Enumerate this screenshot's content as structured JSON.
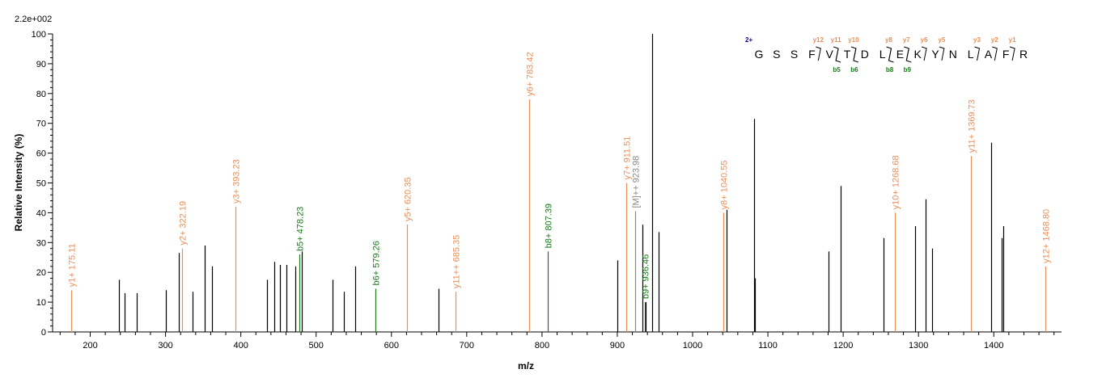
{
  "chart_data": {
    "type": "bar",
    "scale_label": "2.2e+002",
    "xlabel": "m/z",
    "ylabel": "Relative   Intensity (%)",
    "xlim": [
      150,
      1490
    ],
    "ylim": [
      0,
      100
    ],
    "x_ticks": [
      200,
      300,
      400,
      500,
      600,
      700,
      800,
      900,
      1000,
      1100,
      1200,
      1300,
      1400
    ],
    "y_ticks": [
      0,
      10,
      20,
      30,
      40,
      50,
      60,
      70,
      80,
      90,
      100
    ],
    "colors": {
      "y_ion": "#e8905a",
      "b_ion": "#1a7a1a",
      "precursor": "#888888",
      "other": "#000000",
      "charge": "#00008b"
    },
    "peaks": [
      {
        "mz": 175.11,
        "intensity": 14,
        "ion": "y",
        "label": "y1+ 175.11"
      },
      {
        "mz": 238,
        "intensity": 17.5,
        "ion": "other"
      },
      {
        "mz": 246,
        "intensity": 13,
        "ion": "other"
      },
      {
        "mz": 262,
        "intensity": 13,
        "ion": "other"
      },
      {
        "mz": 300,
        "intensity": 14,
        "ion": "other"
      },
      {
        "mz": 318,
        "intensity": 26.5,
        "ion": "other"
      },
      {
        "mz": 322.19,
        "intensity": 28,
        "ion": "y",
        "label": "y2+ 322.19"
      },
      {
        "mz": 336,
        "intensity": 13.5,
        "ion": "other"
      },
      {
        "mz": 352,
        "intensity": 29,
        "ion": "other"
      },
      {
        "mz": 362,
        "intensity": 22,
        "ion": "other"
      },
      {
        "mz": 393.23,
        "intensity": 42,
        "ion": "y",
        "label": "y3+ 393.23"
      },
      {
        "mz": 435,
        "intensity": 17.5,
        "ion": "other"
      },
      {
        "mz": 444,
        "intensity": 23.5,
        "ion": "other"
      },
      {
        "mz": 452,
        "intensity": 22.5,
        "ion": "other"
      },
      {
        "mz": 461,
        "intensity": 22.5,
        "ion": "other"
      },
      {
        "mz": 472,
        "intensity": 22,
        "ion": "other"
      },
      {
        "mz": 478.23,
        "intensity": 26,
        "ion": "b",
        "label": "b5+ 478.23"
      },
      {
        "mz": 481,
        "intensity": 27,
        "ion": "other"
      },
      {
        "mz": 522,
        "intensity": 17.5,
        "ion": "other"
      },
      {
        "mz": 537,
        "intensity": 13.5,
        "ion": "other"
      },
      {
        "mz": 552,
        "intensity": 22,
        "ion": "other"
      },
      {
        "mz": 579.26,
        "intensity": 14.5,
        "ion": "b",
        "label": "b6+ 579.26"
      },
      {
        "mz": 620.35,
        "intensity": 36,
        "ion": "y",
        "label": "y5+ 620.35"
      },
      {
        "mz": 663,
        "intensity": 14.5,
        "ion": "other"
      },
      {
        "mz": 685.35,
        "intensity": 13.5,
        "ion": "y",
        "label": "y11++ 685.35"
      },
      {
        "mz": 783.42,
        "intensity": 78,
        "ion": "y",
        "label": "y6+ 783.42"
      },
      {
        "mz": 807.39,
        "intensity": 27,
        "ion": "b",
        "label": "b8+ 807.39"
      },
      {
        "mz": 900,
        "intensity": 24,
        "ion": "other"
      },
      {
        "mz": 911.51,
        "intensity": 50,
        "ion": "y",
        "label": "y7+ 911.51"
      },
      {
        "mz": 923.98,
        "intensity": 40.5,
        "ion": "precursor",
        "label": "[M]++ 923.98"
      },
      {
        "mz": 933,
        "intensity": 36,
        "ion": "other"
      },
      {
        "mz": 936.46,
        "intensity": 10,
        "ion": "b",
        "label": "b9+ 936.46"
      },
      {
        "mz": 938,
        "intensity": 10,
        "ion": "other"
      },
      {
        "mz": 946,
        "intensity": 100,
        "ion": "other"
      },
      {
        "mz": 955,
        "intensity": 33.5,
        "ion": "other"
      },
      {
        "mz": 1040.55,
        "intensity": 40,
        "ion": "y",
        "label": "y8+ 1040.55"
      },
      {
        "mz": 1045,
        "intensity": 41,
        "ion": "other"
      },
      {
        "mz": 1082,
        "intensity": 71.5,
        "ion": "other"
      },
      {
        "mz": 1083,
        "intensity": 18,
        "ion": "other"
      },
      {
        "mz": 1180,
        "intensity": 27,
        "ion": "other"
      },
      {
        "mz": 1197,
        "intensity": 49,
        "ion": "other"
      },
      {
        "mz": 1254,
        "intensity": 31.5,
        "ion": "other"
      },
      {
        "mz": 1268.68,
        "intensity": 40,
        "ion": "y",
        "label": "y10+ 1268.68"
      },
      {
        "mz": 1295,
        "intensity": 35.5,
        "ion": "other"
      },
      {
        "mz": 1310,
        "intensity": 44.5,
        "ion": "other"
      },
      {
        "mz": 1318,
        "intensity": 28,
        "ion": "other"
      },
      {
        "mz": 1369.73,
        "intensity": 59,
        "ion": "y",
        "label": "y11+ 1369.73"
      },
      {
        "mz": 1396,
        "intensity": 63.5,
        "ion": "other"
      },
      {
        "mz": 1411,
        "intensity": 31.5,
        "ion": "other"
      },
      {
        "mz": 1413,
        "intensity": 35.5,
        "ion": "other"
      },
      {
        "mz": 1468.8,
        "intensity": 22,
        "ion": "y",
        "label": "y12+ 1468.80"
      }
    ],
    "sequence": {
      "charge": "2+",
      "residues": [
        "G",
        "S",
        "S",
        "F",
        "V",
        "T",
        "D",
        "L",
        "E",
        "K",
        "Y",
        "N",
        "L",
        "A",
        "F",
        "R"
      ],
      "y_ions": [
        {
          "after_index": 3,
          "label": "y12"
        },
        {
          "after_index": 4,
          "label": "y11"
        },
        {
          "after_index": 5,
          "label": "y10"
        },
        {
          "after_index": 7,
          "label": "y8"
        },
        {
          "after_index": 8,
          "label": "y7"
        },
        {
          "after_index": 9,
          "label": "y6"
        },
        {
          "after_index": 10,
          "label": "y5"
        },
        {
          "after_index": 12,
          "label": "y3"
        },
        {
          "after_index": 13,
          "label": "y2"
        },
        {
          "after_index": 14,
          "label": "y1"
        }
      ],
      "b_ions": [
        {
          "after_index": 4,
          "label": "b5"
        },
        {
          "after_index": 5,
          "label": "b6"
        },
        {
          "after_index": 7,
          "label": "b8"
        },
        {
          "after_index": 8,
          "label": "b9"
        }
      ]
    }
  }
}
